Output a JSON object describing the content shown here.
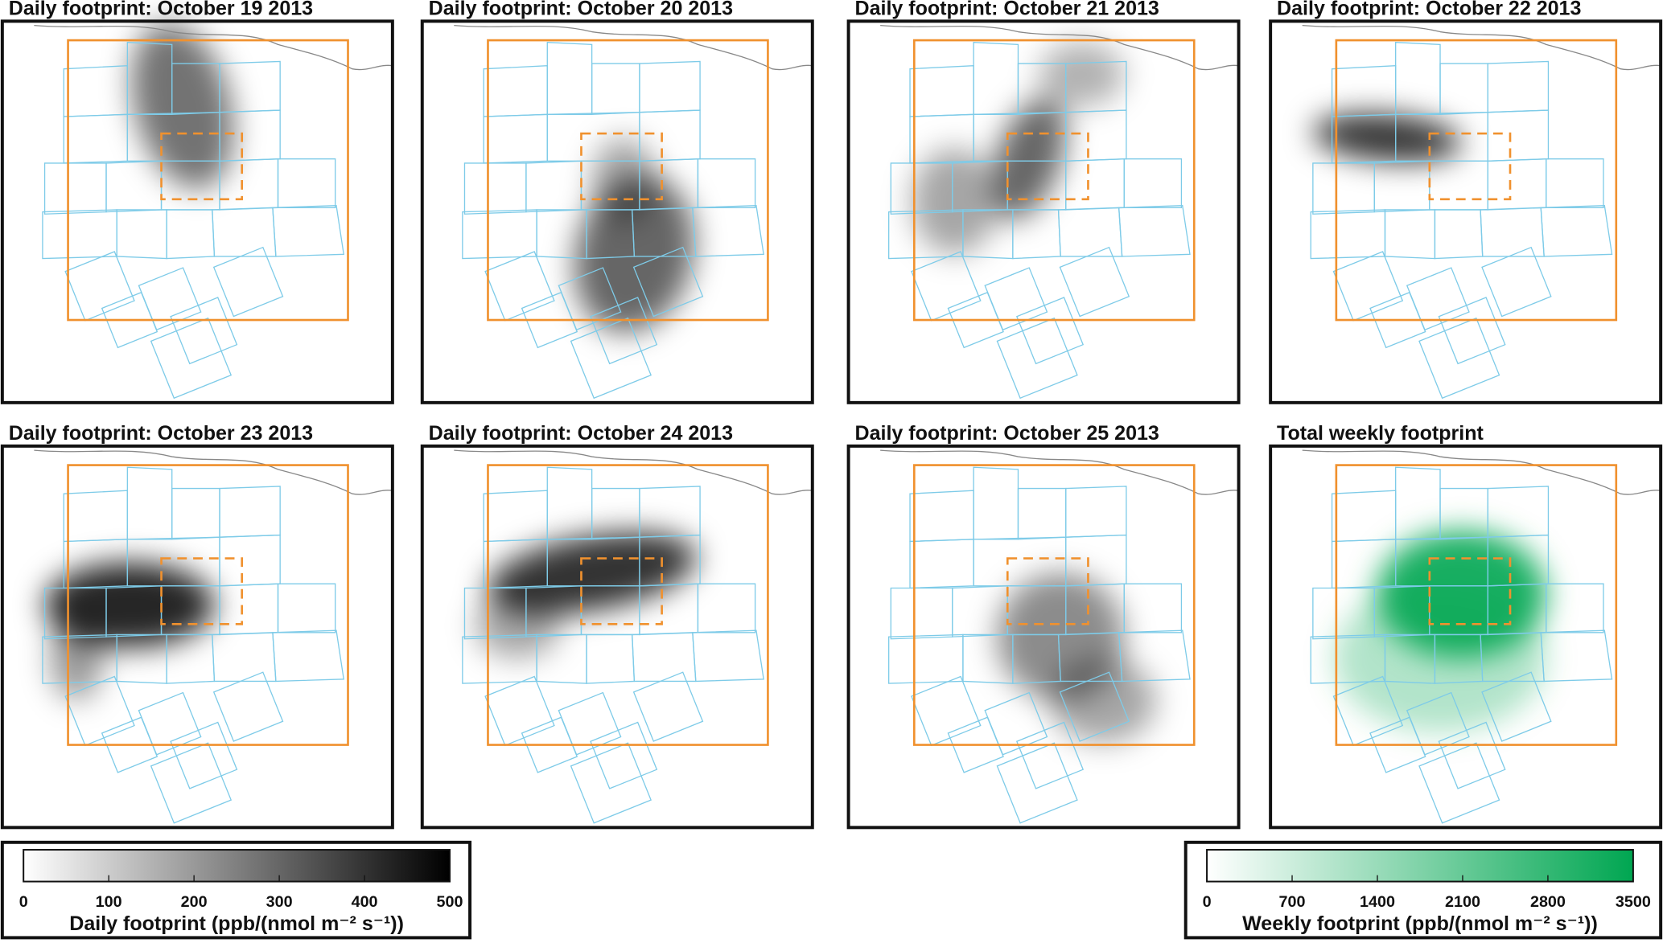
{
  "panels": [
    {
      "title": "Daily footprint: October 19 2013"
    },
    {
      "title": "Daily footprint: October 20 2013"
    },
    {
      "title": "Daily footprint: October 21 2013"
    },
    {
      "title": "Daily footprint: October 22 2013"
    },
    {
      "title": "Daily footprint: October 23 2013"
    },
    {
      "title": "Daily footprint: October 24 2013"
    },
    {
      "title": "Daily footprint: October 25 2013"
    },
    {
      "title": "Total weekly footprint"
    }
  ],
  "colorbars": [
    {
      "label": "Daily footprint (ppb/(nmol m⁻² s⁻¹))",
      "range": [
        0,
        500
      ],
      "ticks": [
        0,
        100,
        200,
        300,
        400,
        500
      ],
      "color": "#000000"
    },
    {
      "label": "Weekly footprint (ppb/(nmol m⁻² s⁻¹))",
      "range": [
        0,
        3500
      ],
      "ticks": [
        0,
        700,
        1400,
        2100,
        2800,
        3500
      ],
      "color": "#00a651"
    }
  ]
}
